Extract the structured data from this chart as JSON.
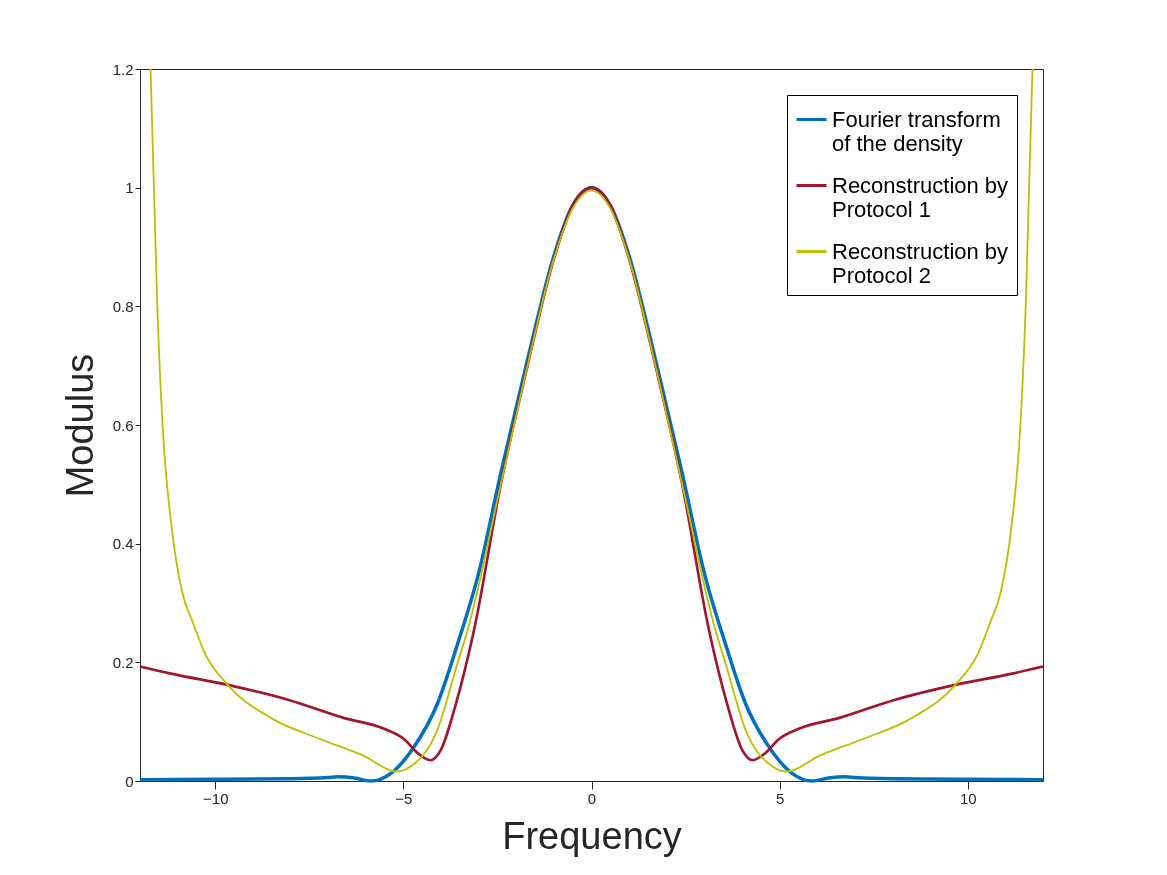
{
  "chart_data": {
    "type": "line",
    "xlabel": "Frequency",
    "ylabel": "Modulus",
    "xlim": [
      -12,
      12
    ],
    "ylim": [
      0,
      1.2
    ],
    "xticks": [
      -10,
      -5,
      0,
      5,
      10
    ],
    "yticks": [
      0,
      0.2,
      0.4,
      0.6,
      0.8,
      1,
      1.2
    ],
    "grid": false,
    "legend": "top right",
    "line_style": "solid",
    "marker": "none",
    "series": [
      {
        "name": "Fourier transform of the density",
        "color": "#0072bd",
        "x": [
          -12,
          -10,
          -8,
          -7,
          -6.75,
          -6.3,
          -5.87,
          -5.33,
          -4.71,
          -4.09,
          -3.55,
          -3,
          -2.41,
          -1.7,
          -1,
          -0.5,
          0,
          0.5,
          1,
          1.7,
          2.41,
          3,
          3.55,
          4.09,
          4.71,
          5.33,
          5.87,
          6.3,
          6.75,
          7,
          8,
          10,
          12
        ],
        "values": [
          0.002,
          0.003,
          0.004,
          0.006,
          0.007,
          0.005,
          0.0,
          0.013,
          0.058,
          0.131,
          0.233,
          0.35,
          0.519,
          0.71,
          0.885,
          0.97,
          1.0,
          0.97,
          0.885,
          0.71,
          0.519,
          0.35,
          0.233,
          0.131,
          0.058,
          0.013,
          0.0,
          0.005,
          0.007,
          0.006,
          0.004,
          0.003,
          0.002
        ]
      },
      {
        "name": "Reconstruction by Protocol 1",
        "color": "#a2142f",
        "x": [
          -12,
          -11.18,
          -9.67,
          -8.07,
          -6.57,
          -5.51,
          -4.97,
          -4.62,
          -4.28,
          -4.0,
          -3.6,
          -3.12,
          -2.41,
          -1.7,
          -1,
          -0.5,
          0,
          0.5,
          1,
          1.7,
          2.41,
          3.12,
          3.6,
          4.0,
          4.28,
          4.62,
          4.97,
          5.51,
          6.57,
          8.07,
          9.67,
          11.18,
          12
        ],
        "values": [
          0.193,
          0.181,
          0.162,
          0.137,
          0.106,
          0.088,
          0.07,
          0.047,
          0.035,
          0.053,
          0.131,
          0.255,
          0.5,
          0.7,
          0.88,
          0.97,
          1.0,
          0.97,
          0.88,
          0.7,
          0.5,
          0.255,
          0.131,
          0.053,
          0.035,
          0.047,
          0.07,
          0.088,
          0.106,
          0.137,
          0.162,
          0.181,
          0.193
        ]
      },
      {
        "name": "Reconstruction by Protocol 2",
        "color": "#bfbf00",
        "x": [
          -11.72,
          -11.63,
          -11.54,
          -11.4,
          -11.16,
          -10.88,
          -10.59,
          -10.28,
          -9.67,
          -8.51,
          -7.18,
          -6.04,
          -5.2,
          -4.8,
          -4.09,
          -3.56,
          -3.29,
          -2.41,
          -1.7,
          -1,
          -0.5,
          0,
          0.5,
          1,
          1.7,
          2.41,
          3.29,
          3.56,
          4.09,
          4.8,
          5.2,
          6.04,
          7.18,
          8.51,
          9.67,
          10.28,
          10.59,
          10.88,
          11.16,
          11.4,
          11.54,
          11.63,
          11.72
        ],
        "values": [
          1.2,
          1.0,
          0.8,
          0.6,
          0.428,
          0.319,
          0.266,
          0.216,
          0.162,
          0.106,
          0.07,
          0.042,
          0.016,
          0.025,
          0.087,
          0.199,
          0.255,
          0.5,
          0.7,
          0.88,
          0.965,
          0.995,
          0.965,
          0.88,
          0.7,
          0.5,
          0.255,
          0.199,
          0.087,
          0.025,
          0.016,
          0.042,
          0.07,
          0.106,
          0.162,
          0.216,
          0.266,
          0.319,
          0.428,
          0.6,
          0.8,
          1.0,
          1.2
        ]
      }
    ]
  }
}
